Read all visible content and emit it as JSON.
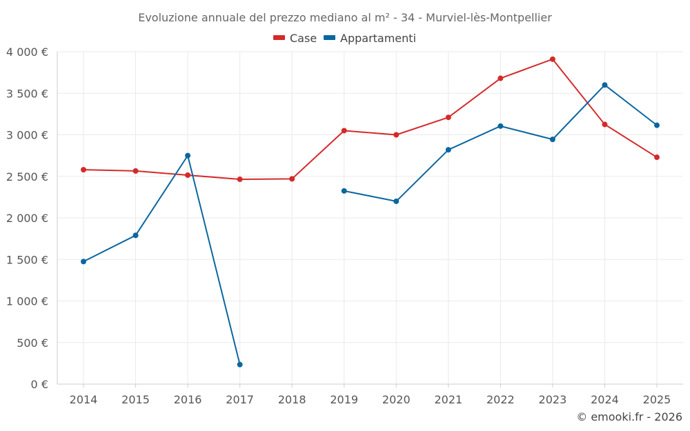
{
  "chart_data": {
    "type": "line",
    "title": "Evoluzione annuale del prezzo mediano al m² - 34 - Murviel-lès-Montpellier",
    "categories": [
      "2014",
      "2015",
      "2016",
      "2017",
      "2018",
      "2019",
      "2020",
      "2021",
      "2022",
      "2023",
      "2024",
      "2025"
    ],
    "y_ticks": [
      0,
      500,
      1000,
      1500,
      2000,
      2500,
      3000,
      3500,
      4000
    ],
    "y_tick_labels": [
      "0 €",
      "500 €",
      "1 000 €",
      "1 500 €",
      "2 000 €",
      "2 500 €",
      "3 000 €",
      "3 500 €",
      "4 000 €"
    ],
    "ylim": [
      0,
      4000
    ],
    "series": [
      {
        "name": "Case",
        "color": "#d42a2a",
        "values": [
          2580,
          2565,
          2515,
          2465,
          2470,
          3050,
          3000,
          3210,
          3680,
          3910,
          3125,
          2730
        ]
      },
      {
        "name": "Appartamenti",
        "color": "#0a66a0",
        "values": [
          1475,
          1790,
          2750,
          235,
          null,
          2325,
          2200,
          2820,
          3105,
          2945,
          3600,
          3115
        ]
      }
    ],
    "legend_position": "top-center",
    "grid": true
  },
  "credit": "© emooki.fr - 2026"
}
